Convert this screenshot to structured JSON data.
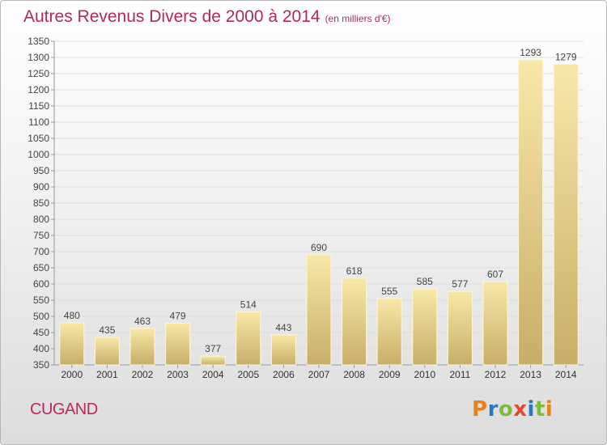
{
  "title": "Autres Revenus Divers de 2000 à 2014",
  "subtitle": "(en milliers d'€)",
  "location": "CUGAND",
  "logo": {
    "letters": [
      "P",
      "r",
      "o",
      "x",
      "i",
      "t",
      "i"
    ],
    "colors": [
      "#e8821a",
      "#2a78c0",
      "#7dbb3a",
      "#e2492d",
      "#2a78c0",
      "#7dbb3a",
      "#e8821a"
    ]
  },
  "colors": {
    "title": "#b5285a",
    "bar_light": "#f8e8a8",
    "bar_dark": "#c8ae68",
    "grid": "#dcdcdc"
  },
  "chart_data": {
    "type": "bar",
    "title": "Autres Revenus Divers de 2000 à 2014",
    "subtitle": "(en milliers d'€)",
    "categories": [
      "2000",
      "2001",
      "2002",
      "2003",
      "2004",
      "2005",
      "2006",
      "2007",
      "2008",
      "2009",
      "2010",
      "2011",
      "2012",
      "2013",
      "2014"
    ],
    "values": [
      480,
      435,
      463,
      479,
      377,
      514,
      443,
      690,
      618,
      555,
      585,
      577,
      607,
      1293,
      1279
    ],
    "ylim": [
      350,
      1350
    ],
    "yticks": [
      350,
      400,
      450,
      500,
      550,
      600,
      650,
      700,
      750,
      800,
      850,
      900,
      950,
      1000,
      1050,
      1100,
      1150,
      1200,
      1250,
      1300,
      1350
    ],
    "grid": true,
    "legend": "none"
  }
}
